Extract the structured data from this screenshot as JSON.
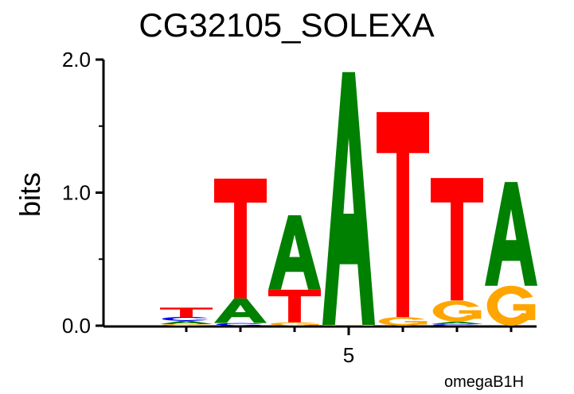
{
  "chart_data": {
    "type": "sequence-logo",
    "title": "CG32105_SOLEXA",
    "ylabel": "bits",
    "xlabel": "",
    "footer": "omegaB1H",
    "ylim": [
      0,
      2.0
    ],
    "y_ticks": [
      "0.0",
      "1.0",
      "2.0"
    ],
    "x_tick_labels": [
      {
        "position": 5,
        "label": "5"
      }
    ],
    "positions": [
      1,
      2,
      3,
      4,
      5,
      6,
      7,
      8
    ],
    "colors": {
      "A": "#008000",
      "C": "#0000ff",
      "G": "#ffa500",
      "T": "#ff0000"
    },
    "columns": [
      {
        "position": 1,
        "letters": []
      },
      {
        "position": 2,
        "letters": [
          {
            "base": "G",
            "bits": 0.012
          },
          {
            "base": "A",
            "bits": 0.024
          },
          {
            "base": "C",
            "bits": 0.03
          },
          {
            "base": "T",
            "bits": 0.07
          }
        ]
      },
      {
        "position": 3,
        "letters": [
          {
            "base": "C",
            "bits": 0.02
          },
          {
            "base": "A",
            "bits": 0.185
          },
          {
            "base": "T",
            "bits": 0.9
          }
        ]
      },
      {
        "position": 4,
        "letters": [
          {
            "base": "G",
            "bits": 0.025
          },
          {
            "base": "T",
            "bits": 0.245
          },
          {
            "base": "A",
            "bits": 0.56
          }
        ]
      },
      {
        "position": 5,
        "letters": [
          {
            "base": "G",
            "bits": 0.006
          },
          {
            "base": "A",
            "bits": 1.9
          }
        ]
      },
      {
        "position": 6,
        "letters": [
          {
            "base": "G",
            "bits": 0.065
          },
          {
            "base": "T",
            "bits": 1.54
          }
        ]
      },
      {
        "position": 7,
        "letters": [
          {
            "base": "C",
            "bits": 0.012
          },
          {
            "base": "A",
            "bits": 0.018
          },
          {
            "base": "G",
            "bits": 0.16
          },
          {
            "base": "T",
            "bits": 0.92
          }
        ]
      },
      {
        "position": 8,
        "letters": [
          {
            "base": "G",
            "bits": 0.3
          },
          {
            "base": "A",
            "bits": 0.78
          }
        ]
      }
    ]
  }
}
